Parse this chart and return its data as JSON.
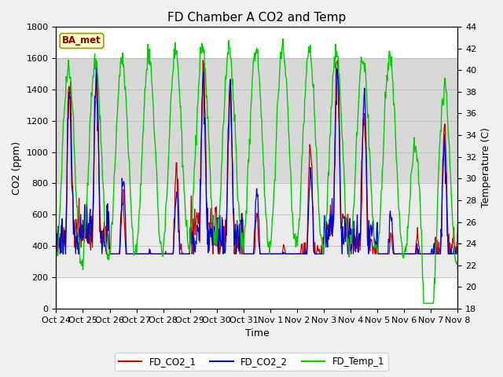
{
  "title": "FD Chamber A CO2 and Temp",
  "xlabel": "Time",
  "ylabel_left": "CO2 (ppm)",
  "ylabel_right": "Temperature (C)",
  "ylim_left": [
    0,
    1800
  ],
  "ylim_right": [
    18,
    44
  ],
  "yticks_left": [
    0,
    200,
    400,
    600,
    800,
    1000,
    1200,
    1400,
    1600,
    1800
  ],
  "yticks_right": [
    18,
    20,
    22,
    24,
    26,
    28,
    30,
    32,
    34,
    36,
    38,
    40,
    42,
    44
  ],
  "xtick_labels": [
    "Oct 24",
    "Oct 25",
    "Oct 26",
    "Oct 27",
    "Oct 28",
    "Oct 29",
    "Oct 30",
    "Oct 31",
    "Nov 1",
    "Nov 2",
    "Nov 3",
    "Nov 4",
    "Nov 5",
    "Nov 6",
    "Nov 7",
    "Nov 8"
  ],
  "color_co2_1": "#cc0000",
  "color_co2_2": "#0000cc",
  "color_temp": "#00cc00",
  "legend_label_1": "FD_CO2_1",
  "legend_label_2": "FD_CO2_2",
  "legend_label_3": "FD_Temp_1",
  "annotation_text": "BA_met",
  "background_band_color1": "#d8d8d8",
  "background_band_color2": "#ebebeb",
  "title_fontsize": 11,
  "axis_label_fontsize": 9,
  "tick_fontsize": 8,
  "linewidth_co2": 0.9,
  "linewidth_temp": 1.0
}
